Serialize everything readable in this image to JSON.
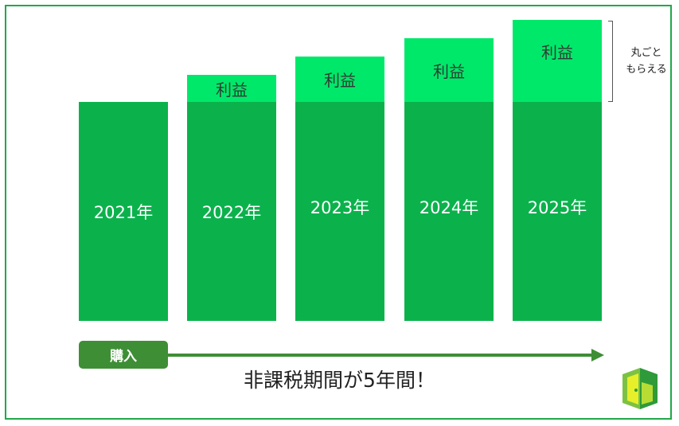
{
  "bars": [
    {
      "year": "2021年",
      "profit": ""
    },
    {
      "year": "2022年",
      "profit": "利益"
    },
    {
      "year": "2023年",
      "profit": "利益"
    },
    {
      "year": "2024年",
      "profit": "利益"
    },
    {
      "year": "2025年",
      "profit": "利益"
    }
  ],
  "side_note": {
    "line1": "丸ごと",
    "line2": "もらえる"
  },
  "buy_label": "購入",
  "caption": "非課税期間が5年間！",
  "colors": {
    "base": "#0bb24c",
    "profit": "#00e86a",
    "buy": "#3e8e35",
    "frame": "#22a84a"
  },
  "logo_icon": "door-icon"
}
